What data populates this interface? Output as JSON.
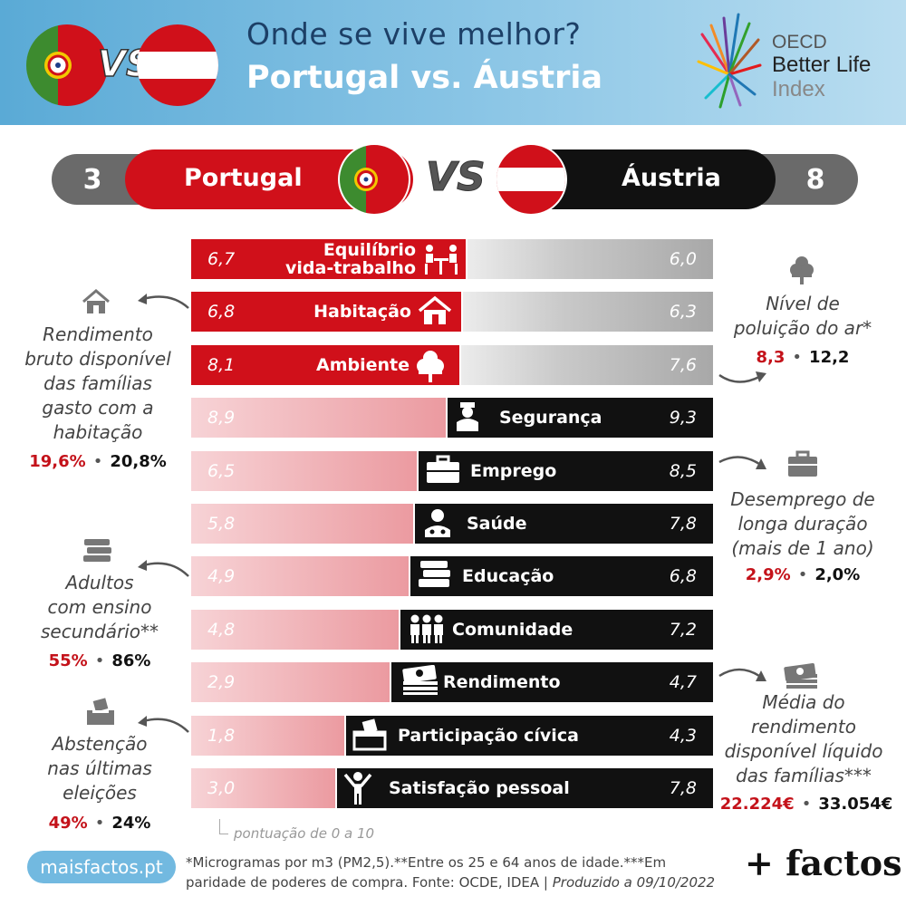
{
  "header": {
    "title_line1": "Onde se vive melhor?",
    "title_line2": "Portugal vs. Áustria",
    "vs_label": "VS",
    "oecd_line1": "OECD",
    "oecd_line2": "Better Life",
    "oecd_line3": "Index"
  },
  "score": {
    "portugal_wins": "3",
    "austria_wins": "8",
    "portugal_label": "Portugal",
    "austria_label": "Áustria",
    "vs_label": "VS"
  },
  "colors": {
    "portugal_strong": "#d0101a",
    "portugal_faded": "#eb9aa0",
    "austria_strong": "#111111",
    "austria_faded": "#c9c9c9"
  },
  "chart_data": {
    "type": "bar",
    "orientation": "diverging-horizontal",
    "scale": [
      0,
      10
    ],
    "categories": [
      "Equilíbrio vida-trabalho",
      "Habitação",
      "Ambiente",
      "Segurança",
      "Emprego",
      "Saúde",
      "Educação",
      "Comunidade",
      "Rendimento",
      "Participação cívica",
      "Satisfação pessoal"
    ],
    "series": [
      {
        "name": "Portugal",
        "values": [
          6.7,
          6.8,
          8.1,
          8.9,
          6.5,
          5.8,
          4.9,
          4.8,
          2.9,
          1.8,
          3.0
        ]
      },
      {
        "name": "Áustria",
        "values": [
          6.0,
          6.3,
          7.6,
          9.3,
          8.5,
          7.8,
          6.8,
          7.2,
          4.7,
          4.3,
          7.8
        ]
      }
    ],
    "value_labels_pt": [
      "6,7",
      "6,8",
      "8,1",
      "8,9",
      "6,5",
      "5,8",
      "4,9",
      "4,8",
      "2,9",
      "1,8",
      "3,0"
    ],
    "value_labels_at": [
      "6,0",
      "6,3",
      "7,6",
      "9,3",
      "8,5",
      "7,8",
      "6,8",
      "7,2",
      "4,7",
      "4,3",
      "7,8"
    ],
    "label_lines": [
      [
        "Equilíbrio",
        "vida-trabalho"
      ],
      [
        "Habitação"
      ],
      [
        "Ambiente"
      ],
      [
        "Segurança"
      ],
      [
        "Emprego"
      ],
      [
        "Saúde"
      ],
      [
        "Educação"
      ],
      [
        "Comunidade"
      ],
      [
        "Rendimento"
      ],
      [
        "Participação cívica"
      ],
      [
        "Satisfação pessoal"
      ]
    ],
    "icons": [
      "work-life-icon",
      "house-icon",
      "tree-icon",
      "police-icon",
      "briefcase-icon",
      "doctor-icon",
      "books-icon",
      "people-icon",
      "money-icon",
      "ballot-box-icon",
      "person-cheer-icon"
    ],
    "scale_note": "pontuação de 0 a 10"
  },
  "notes": {
    "housing": {
      "lines": [
        "Rendimento",
        "bruto disponível",
        "das famílias",
        "gasto com a",
        "habitação"
      ],
      "pt": "19,6%",
      "at": "20,8%"
    },
    "education": {
      "lines": [
        "Adultos",
        "com ensino",
        "secundário**"
      ],
      "pt": "55%",
      "at": "86%"
    },
    "civic": {
      "lines": [
        "Abstenção",
        "nas últimas",
        "eleições"
      ],
      "pt": "49%",
      "at": "24%"
    },
    "pollution": {
      "lines": [
        "Nível de",
        "poluição do ar*"
      ],
      "pt": "8,3",
      "at": "12,2"
    },
    "unemployment": {
      "lines": [
        "Desemprego de",
        "longa duração",
        "(mais de 1 ano)"
      ],
      "pt": "2,9%",
      "at": "2,0%"
    },
    "income": {
      "lines": [
        "Média do",
        "rendimento",
        "disponível líquido",
        "das famílias***"
      ],
      "pt": "22.224€",
      "at": "33.054€"
    }
  },
  "footer": {
    "site": "maisfactos.pt",
    "footnote_line1": "*Microgramas por m3 (PM2,5).**Entre os 25 e 64 anos de idade.***Em",
    "footnote_line2": "paridade de poderes de compra. Fonte: OCDE, IDEA |",
    "footnote_produced": "Produzido a 09/10/2022",
    "brand": "+ factos"
  }
}
